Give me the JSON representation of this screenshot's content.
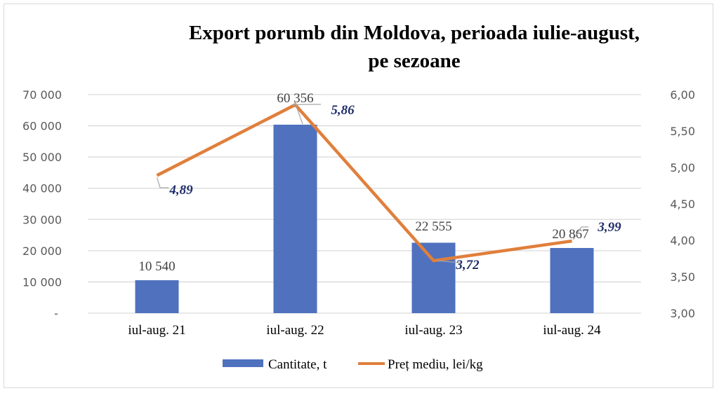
{
  "chart_data": {
    "type": "bar+line",
    "title_lines": [
      "Export porumb din Moldova, perioada iulie-august,",
      "pe sezoane"
    ],
    "categories": [
      "iul-aug. 21",
      "iul-aug. 22",
      "iul-aug. 23",
      "iul-aug. 24"
    ],
    "series": [
      {
        "name": "Cantitate, t",
        "type": "bar",
        "axis": "left",
        "color": "#4f71be",
        "values": [
          10540,
          60356,
          22555,
          20867
        ],
        "labels": [
          "10 540",
          "60 356",
          "22 555",
          "20 867"
        ]
      },
      {
        "name": "Preț mediu, lei/kg",
        "type": "line",
        "axis": "right",
        "color": "#e07f3c",
        "values": [
          4.89,
          5.86,
          3.72,
          3.99
        ],
        "labels": [
          "4,89",
          "5,86",
          "3,72",
          "3,99"
        ]
      }
    ],
    "y_left": {
      "min": 0,
      "max": 70000,
      "ticks": [
        "-",
        "10 000",
        "20 000",
        "30 000",
        "40 000",
        "50 000",
        "60 000",
        "70 000"
      ]
    },
    "y_right": {
      "min": 3,
      "max": 6,
      "ticks": [
        "3,00",
        "3,50",
        "4,00",
        "4,50",
        "5,00",
        "5,50",
        "6,00"
      ]
    },
    "grid": true,
    "legend": "bottom"
  }
}
